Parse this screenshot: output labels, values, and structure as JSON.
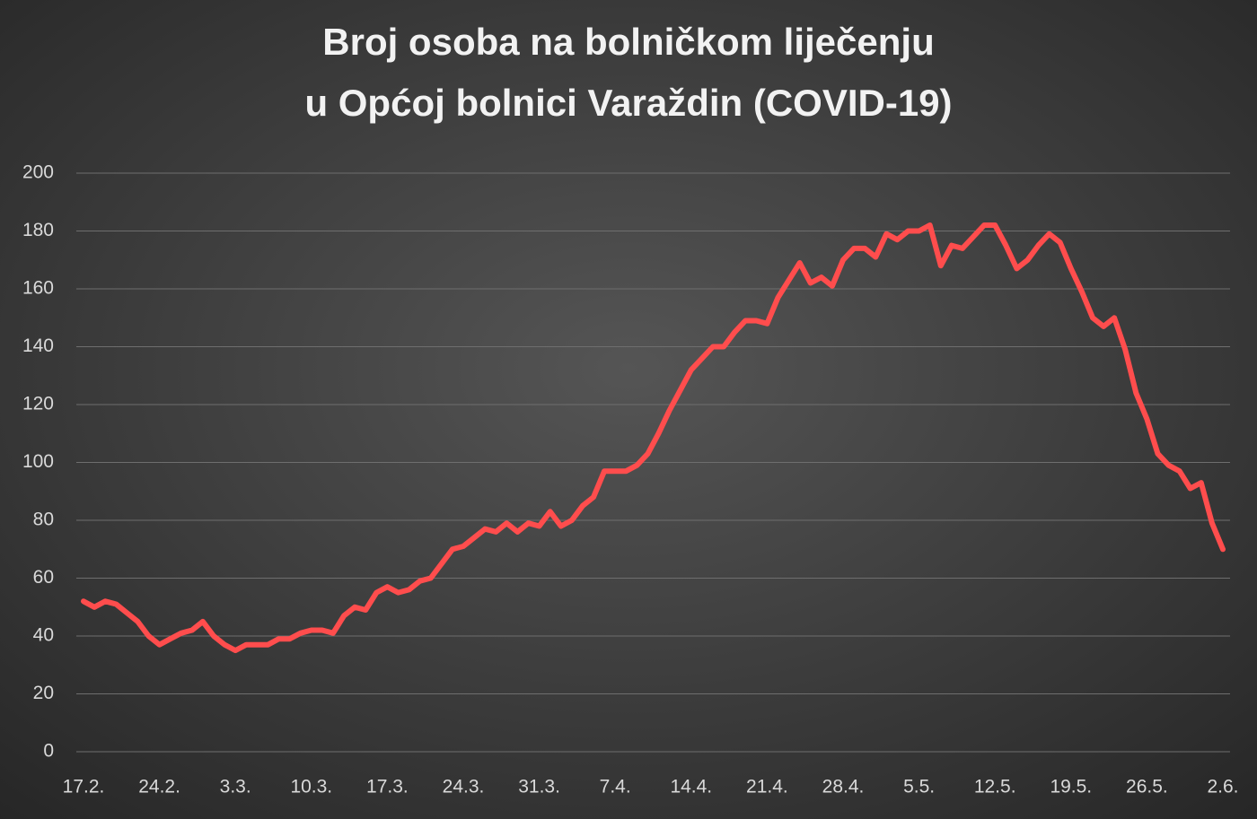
{
  "chart_data": {
    "type": "line",
    "title": [
      "Broj osoba na bolničkom liječenju",
      "u Općoj bolnici Varaždin (COVID-19)"
    ],
    "categories": [
      "17.2.",
      null,
      null,
      null,
      null,
      null,
      null,
      "24.2.",
      null,
      null,
      null,
      null,
      null,
      null,
      "3.3.",
      null,
      null,
      null,
      null,
      null,
      null,
      "10.3.",
      null,
      null,
      null,
      null,
      null,
      null,
      "17.3.",
      null,
      null,
      null,
      null,
      null,
      null,
      "24.3.",
      null,
      null,
      null,
      null,
      null,
      null,
      "31.3.",
      null,
      null,
      null,
      null,
      null,
      null,
      "7.4.",
      null,
      null,
      null,
      null,
      null,
      null,
      "14.4.",
      null,
      null,
      null,
      null,
      null,
      null,
      "21.4.",
      null,
      null,
      null,
      null,
      null,
      null,
      "28.4.",
      null,
      null,
      null,
      null,
      null,
      null,
      "5.5.",
      null,
      null,
      null,
      null,
      null,
      null,
      "12.5.",
      null,
      null,
      null,
      null,
      null,
      null,
      "19.5.",
      null,
      null,
      null,
      null,
      null,
      null,
      "26.5.",
      null,
      null,
      null,
      null,
      null,
      null,
      "2.6."
    ],
    "series": [
      {
        "color": "#ff4d4d",
        "values": [
          52,
          50,
          52,
          51,
          48,
          45,
          40,
          37,
          39,
          41,
          42,
          45,
          40,
          37,
          35,
          37,
          37,
          37,
          39,
          39,
          41,
          42,
          42,
          41,
          47,
          50,
          49,
          55,
          57,
          55,
          56,
          59,
          60,
          65,
          70,
          71,
          74,
          77,
          76,
          79,
          76,
          79,
          78,
          83,
          78,
          80,
          85,
          88,
          97,
          97,
          97,
          99,
          103,
          110,
          118,
          125,
          132,
          136,
          140,
          140,
          145,
          149,
          149,
          148,
          157,
          163,
          169,
          162,
          164,
          161,
          170,
          174,
          174,
          171,
          179,
          177,
          180,
          180,
          182,
          168,
          175,
          174,
          178,
          182,
          182,
          175,
          167,
          170,
          175,
          179,
          176,
          167,
          159,
          150,
          147,
          150,
          139,
          124,
          115,
          103,
          99,
          97,
          91,
          93,
          79,
          70
        ]
      }
    ],
    "ylim": [
      0,
      200
    ],
    "yticks": [
      0,
      20,
      40,
      60,
      80,
      100,
      120,
      140,
      160,
      180,
      200
    ],
    "grid": true
  }
}
